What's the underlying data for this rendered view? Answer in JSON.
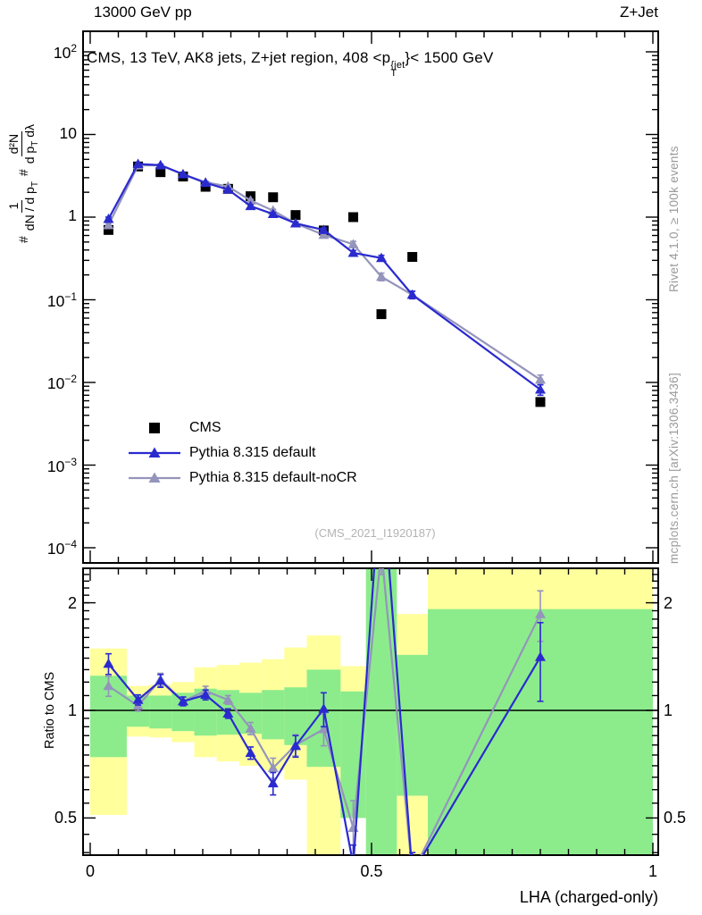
{
  "header": {
    "left": "13000 GeV pp",
    "right": "Z+Jet"
  },
  "panel_title": {
    "prefix": "CMS, 13 TeV, AK8 jets, Z+jet region, 408 <p",
    "sup": "{jet",
    "sub": "T",
    "suffix": "}< 1500 GeV"
  },
  "watermark": "(CMS_2021_I1920187)",
  "side_notes": {
    "top": "Rivet 4.1.0, ≥ 100k events",
    "bottom": "mcplots.cern.ch [arXiv:1306.3436]"
  },
  "y_axis_label": {
    "hash1": "#",
    "f1_num": "1",
    "f1_den_a": "dN / d p",
    "f1_den_sub": "T",
    "hash2": "#",
    "f2_num": "d²N",
    "f2_den_a": "d p",
    "f2_den_sub": "T",
    "f2_den_b": " dλ"
  },
  "ratio_y_label": "Ratio to CMS",
  "x_axis_label": "LHA (charged-only)",
  "legend": [
    {
      "label": "CMS",
      "marker": "square",
      "color": "#000000"
    },
    {
      "label": "Pythia 8.315 default",
      "marker": "triangle-line",
      "color": "#2a2acf"
    },
    {
      "label": "Pythia 8.315 default-noCR",
      "marker": "triangle-line",
      "color": "#9494bc"
    }
  ],
  "chart_data": {
    "type": "line",
    "title": "CMS, 13 TeV, AK8 jets, Z+jet region, 408 <pT_jet< 1500 GeV",
    "xlabel": "LHA (charged-only)",
    "x_range": [
      0,
      1
    ],
    "main_y_scale": "log",
    "main_y_range": [
      0.0001,
      100
    ],
    "ratio_y_scale": "log",
    "ratio_y_range": [
      0.394,
      2.495
    ],
    "grid": false,
    "legend_position": "inside-left-bottom",
    "main_y_ticks": [
      {
        "label": "10^2",
        "value": 100
      },
      {
        "label": "10",
        "value": 10
      },
      {
        "label": "1",
        "value": 1
      },
      {
        "label": "10^-1",
        "value": 0.1
      },
      {
        "label": "10^-2",
        "value": 0.01
      },
      {
        "label": "10^-3",
        "value": 0.001
      },
      {
        "label": "10^-4",
        "value": 0.0001
      }
    ],
    "ratio_y_ticks": [
      {
        "label": "2",
        "value": 2
      },
      {
        "label": "1",
        "value": 1
      },
      {
        "label": "0.5",
        "value": 0.5
      }
    ],
    "x_ticks": [
      {
        "label": "0",
        "value": 0
      },
      {
        "label": "0.5",
        "value": 0.5
      },
      {
        "label": "1",
        "value": 1
      }
    ],
    "bin_edges": [
      0,
      0.065,
      0.105,
      0.145,
      0.185,
      0.225,
      0.265,
      0.305,
      0.345,
      0.385,
      0.445,
      0.49,
      0.545,
      0.6,
      1.0
    ],
    "x": [
      0.0325,
      0.085,
      0.125,
      0.165,
      0.205,
      0.245,
      0.285,
      0.325,
      0.365,
      0.415,
      0.4675,
      0.5175,
      0.5725,
      0.8
    ],
    "series": [
      {
        "name": "CMS",
        "marker": "square",
        "color": "#000000",
        "values": [
          0.7,
          4.1,
          3.5,
          3.1,
          2.33,
          2.2,
          1.79,
          1.74,
          1.06,
          0.69,
          1.0,
          0.067,
          0.33,
          0.0058
        ]
      },
      {
        "name": "Pythia 8.315 default",
        "marker": "triangle",
        "color": "#2a2acf",
        "values": [
          0.95,
          4.4,
          4.25,
          3.3,
          2.6,
          2.16,
          1.36,
          1.09,
          0.84,
          0.7,
          0.37,
          0.32,
          0.115,
          0.0082
        ],
        "errors": [
          0.05,
          0.1,
          0.1,
          0.08,
          0.07,
          0.06,
          0.05,
          0.04,
          0.035,
          0.04,
          0.025,
          0.025,
          0.012,
          0.0012
        ],
        "ratio": [
          1.35,
          1.07,
          1.21,
          1.06,
          1.105,
          0.98,
          0.76,
          0.625,
          0.795,
          1.01,
          0.37,
          4.8,
          0.35,
          1.41
        ],
        "ratio_errors": [
          0.09,
          0.035,
          0.05,
          0.03,
          0.035,
          0.03,
          0.03,
          0.045,
          0.055,
          0.11,
          0.05,
          0.5,
          0.05,
          0.35
        ]
      },
      {
        "name": "Pythia 8.315 default-noCR",
        "marker": "triangle",
        "color": "#9494bc",
        "values": [
          0.8,
          4.22,
          4.25,
          3.3,
          2.64,
          2.35,
          1.59,
          1.2,
          0.84,
          0.61,
          0.47,
          0.19,
          0.115,
          0.0108
        ],
        "errors": [
          0.045,
          0.1,
          0.1,
          0.08,
          0.07,
          0.06,
          0.05,
          0.045,
          0.035,
          0.035,
          0.04,
          0.02,
          0.012,
          0.0015
        ],
        "ratio": [
          1.17,
          1.03,
          1.22,
          1.06,
          1.133,
          1.07,
          0.89,
          0.69,
          0.8,
          0.886,
          0.469,
          2.8,
          0.35,
          1.86
        ],
        "ratio_errors": [
          0.075,
          0.035,
          0.05,
          0.03,
          0.035,
          0.03,
          0.035,
          0.045,
          0.055,
          0.09,
          0.09,
          0.4,
          0.05,
          0.3
        ]
      }
    ],
    "bands": {
      "yellow_color": "#ffff9c",
      "green_color": "#8cec8c",
      "bins": [
        {
          "x0": 0.0,
          "x1": 0.065,
          "yellow": [
            0.51,
            1.49
          ],
          "green": [
            0.74,
            1.25
          ]
        },
        {
          "x0": 0.065,
          "x1": 0.105,
          "yellow": [
            0.845,
            1.17
          ],
          "green": [
            0.9,
            1.1
          ]
        },
        {
          "x0": 0.105,
          "x1": 0.145,
          "yellow": [
            0.84,
            1.18
          ],
          "green": [
            0.89,
            1.1
          ]
        },
        {
          "x0": 0.145,
          "x1": 0.185,
          "yellow": [
            0.815,
            1.2
          ],
          "green": [
            0.875,
            1.12
          ]
        },
        {
          "x0": 0.185,
          "x1": 0.225,
          "yellow": [
            0.74,
            1.32
          ],
          "green": [
            0.85,
            1.15
          ]
        },
        {
          "x0": 0.225,
          "x1": 0.265,
          "yellow": [
            0.72,
            1.34
          ],
          "green": [
            0.855,
            1.14
          ]
        },
        {
          "x0": 0.265,
          "x1": 0.305,
          "yellow": [
            0.7,
            1.36
          ],
          "green": [
            0.86,
            1.12
          ]
        },
        {
          "x0": 0.305,
          "x1": 0.345,
          "yellow": [
            0.68,
            1.39
          ],
          "green": [
            0.83,
            1.14
          ]
        },
        {
          "x0": 0.345,
          "x1": 0.385,
          "yellow": [
            0.64,
            1.5
          ],
          "green": [
            0.8,
            1.16
          ]
        },
        {
          "x0": 0.385,
          "x1": 0.445,
          "yellow": [
            0.3,
            1.62
          ],
          "green": [
            0.695,
            1.3
          ]
        },
        {
          "x0": 0.445,
          "x1": 0.49,
          "yellow": [
            0.5,
            1.33
          ],
          "green": [
            0.5,
            1.13
          ]
        },
        {
          "x0": 0.49,
          "x1": 0.545,
          "yellow": null,
          "green": [
            0.3,
            2.6
          ]
        },
        {
          "x0": 0.545,
          "x1": 0.6,
          "yellow": [
            0.3,
            1.86
          ],
          "green": [
            0.577,
            1.43
          ]
        },
        {
          "x0": 0.6,
          "x1": 1.0,
          "yellow": [
            0.3,
            2.6
          ],
          "green": [
            0.3,
            1.92
          ]
        }
      ]
    }
  }
}
